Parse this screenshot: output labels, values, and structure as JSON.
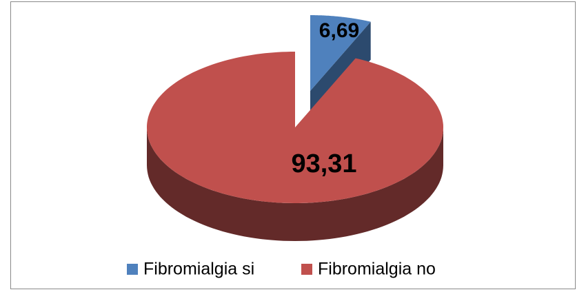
{
  "chart_data": {
    "type": "pie",
    "categories": [
      "Fibromialgia si",
      "Fibromialgia no"
    ],
    "values": [
      6.69,
      93.31
    ],
    "value_labels": [
      "6,69",
      "93,31"
    ],
    "colors": [
      "#4f81bd",
      "#c0504d"
    ],
    "side_colors": [
      "#2c4a6e",
      "#632a29"
    ],
    "legend": "bottom"
  }
}
